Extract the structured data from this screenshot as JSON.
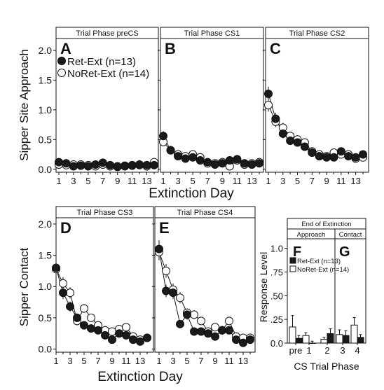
{
  "figure": {
    "top_xlabel": "Extinction Day",
    "top_ylabel": "Sipper Site Approach",
    "bottom_xlabel": "Extinction Day",
    "bottom_ylabel": "Sipper Contact",
    "right_xlabel": "CS Trial Phase",
    "right_ylabel": "Response Level",
    "right_header": "End of Extinction",
    "right_group_approach": "Approach",
    "right_group_contact": "Contact",
    "legend_top": [
      "Ret-Ext (n=13)",
      "NoRet-Ext (n=14)"
    ],
    "legend_bar": [
      "Ret-Ext (n=13)",
      "NoRet-Ext (n=14)"
    ],
    "colors": {
      "ret_ext": "#1a1a1a",
      "noret_ext": "#ffffff",
      "strip": "#ffffff",
      "axis": "#111111"
    }
  },
  "chart_data": [
    {
      "type": "line",
      "letter": "A",
      "title": "Trial Phase preCS",
      "xlabel": "Extinction Day",
      "ylabel": "Sipper Site Approach",
      "x": [
        1,
        2,
        3,
        4,
        5,
        6,
        7,
        8,
        9,
        10,
        11,
        12,
        13,
        14
      ],
      "xticks": [
        "1",
        "3",
        "5",
        "7",
        "9",
        "11",
        "13"
      ],
      "yticks": [
        "0.0",
        "0.5",
        "1.0",
        "1.5",
        "2.0"
      ],
      "ylim": [
        -0.05,
        2.2
      ],
      "series": [
        {
          "name": "Ret-Ext (n=13)",
          "fill": "black",
          "values": [
            0.12,
            0.1,
            0.05,
            0.06,
            0.05,
            0.08,
            0.11,
            0.07,
            0.05,
            0.05,
            0.07,
            0.08,
            0.07,
            0.07
          ],
          "err": [
            0.03,
            0.03,
            0.02,
            0.02,
            0.02,
            0.03,
            0.03,
            0.02,
            0.02,
            0.02,
            0.02,
            0.03,
            0.02,
            0.03
          ]
        },
        {
          "name": "NoRet-Ext (n=14)",
          "fill": "white",
          "values": [
            0.08,
            0.07,
            0.08,
            0.08,
            0.07,
            0.05,
            0.08,
            0.05,
            0.04,
            0.06,
            0.06,
            0.07,
            0.05,
            0.12
          ],
          "err": [
            0.02,
            0.02,
            0.02,
            0.02,
            0.02,
            0.02,
            0.02,
            0.02,
            0.02,
            0.02,
            0.02,
            0.02,
            0.02,
            0.05
          ]
        }
      ]
    },
    {
      "type": "line",
      "letter": "B",
      "title": "Trial Phase CS1",
      "xlabel": "Extinction Day",
      "ylabel": "Sipper Site Approach",
      "x": [
        1,
        2,
        3,
        4,
        5,
        6,
        7,
        8,
        9,
        10,
        11,
        12,
        13,
        14
      ],
      "xticks": [
        "1",
        "3",
        "5",
        "7",
        "9",
        "11",
        "13"
      ],
      "yticks": [
        "0.0",
        "0.5",
        "1.0",
        "1.5",
        "2.0"
      ],
      "ylim": [
        -0.05,
        2.2
      ],
      "series": [
        {
          "name": "Ret-Ext (n=13)",
          "fill": "black",
          "values": [
            0.56,
            0.32,
            0.22,
            0.18,
            0.2,
            0.15,
            0.12,
            0.08,
            0.1,
            0.15,
            0.17,
            0.1,
            0.08,
            0.1
          ],
          "err": [
            0.08,
            0.06,
            0.04,
            0.04,
            0.04,
            0.04,
            0.03,
            0.03,
            0.03,
            0.04,
            0.04,
            0.03,
            0.03,
            0.03
          ]
        },
        {
          "name": "NoRet-Ext (n=14)",
          "fill": "white",
          "values": [
            0.46,
            0.32,
            0.25,
            0.22,
            0.25,
            0.2,
            0.1,
            0.1,
            0.12,
            0.05,
            0.15,
            0.08,
            0.1,
            0.12
          ],
          "err": [
            0.07,
            0.05,
            0.04,
            0.04,
            0.04,
            0.04,
            0.03,
            0.03,
            0.03,
            0.02,
            0.04,
            0.03,
            0.03,
            0.03
          ]
        }
      ]
    },
    {
      "type": "line",
      "letter": "C",
      "title": "Trial Phase CS2",
      "xlabel": "Extinction Day",
      "ylabel": "Sipper Site Approach",
      "x": [
        1,
        2,
        3,
        4,
        5,
        6,
        7,
        8,
        9,
        10,
        11,
        12,
        13,
        14
      ],
      "xticks": [
        "1",
        "3",
        "5",
        "7",
        "9",
        "11",
        "13"
      ],
      "yticks": [
        "0.0",
        "0.5",
        "1.0",
        "1.5",
        "2.0"
      ],
      "ylim": [
        -0.05,
        2.2
      ],
      "series": [
        {
          "name": "Ret-Ext (n=13)",
          "fill": "black",
          "values": [
            1.27,
            0.85,
            0.6,
            0.48,
            0.45,
            0.38,
            0.28,
            0.22,
            0.2,
            0.2,
            0.3,
            0.22,
            0.2,
            0.25
          ],
          "err": [
            0.12,
            0.1,
            0.08,
            0.07,
            0.06,
            0.06,
            0.05,
            0.04,
            0.04,
            0.04,
            0.05,
            0.04,
            0.04,
            0.05
          ]
        },
        {
          "name": "NoRet-Ext (n=14)",
          "fill": "white",
          "values": [
            1.08,
            0.8,
            0.7,
            0.56,
            0.5,
            0.45,
            0.3,
            0.25,
            0.22,
            0.28,
            0.25,
            0.25,
            0.18,
            0.2
          ],
          "err": [
            0.11,
            0.09,
            0.08,
            0.07,
            0.06,
            0.06,
            0.05,
            0.04,
            0.04,
            0.05,
            0.04,
            0.04,
            0.04,
            0.04
          ]
        }
      ]
    },
    {
      "type": "line",
      "letter": "D",
      "title": "Trial Phase CS3",
      "xlabel": "Extinction Day",
      "ylabel": "Sipper Contact",
      "x": [
        1,
        2,
        3,
        4,
        5,
        6,
        7,
        8,
        9,
        10,
        11,
        12,
        13,
        14
      ],
      "xticks": [
        "1",
        "3",
        "5",
        "7",
        "9",
        "11",
        "13"
      ],
      "yticks": [
        "0.0",
        "0.5",
        "1.0",
        "1.5",
        "2.0"
      ],
      "ylim": [
        -0.05,
        2.1
      ],
      "series": [
        {
          "name": "Ret-Ext (n=13)",
          "fill": "black",
          "values": [
            1.3,
            0.9,
            0.68,
            0.5,
            0.38,
            0.33,
            0.3,
            0.22,
            0.15,
            0.25,
            0.22,
            0.15,
            0.12,
            0.18
          ],
          "err": [
            0.12,
            0.1,
            0.08,
            0.07,
            0.06,
            0.05,
            0.05,
            0.04,
            0.04,
            0.05,
            0.04,
            0.04,
            0.04,
            0.04
          ]
        },
        {
          "name": "NoRet-Ext (n=14)",
          "fill": "white",
          "values": [
            1.28,
            1.05,
            0.9,
            0.45,
            0.65,
            0.5,
            0.38,
            0.3,
            0.28,
            0.32,
            0.35,
            0.2,
            0.15,
            0.18
          ],
          "err": [
            0.12,
            0.1,
            0.09,
            0.07,
            0.07,
            0.06,
            0.05,
            0.05,
            0.05,
            0.05,
            0.05,
            0.04,
            0.04,
            0.04
          ]
        }
      ]
    },
    {
      "type": "line",
      "letter": "E",
      "title": "Trial Phase CS4",
      "xlabel": "Extinction Day",
      "ylabel": "Sipper Contact",
      "x": [
        1,
        2,
        3,
        4,
        5,
        6,
        7,
        8,
        9,
        10,
        11,
        12,
        13,
        14
      ],
      "xticks": [
        "1",
        "3",
        "5",
        "7",
        "9",
        "11",
        "13"
      ],
      "yticks": [
        "0.0",
        "0.5",
        "1.0",
        "1.5",
        "2.0"
      ],
      "ylim": [
        -0.05,
        2.1
      ],
      "series": [
        {
          "name": "Ret-Ext (n=13)",
          "fill": "black",
          "values": [
            1.6,
            0.93,
            0.9,
            0.4,
            0.55,
            0.28,
            0.28,
            0.25,
            0.2,
            0.3,
            0.3,
            0.15,
            0.1,
            0.15
          ],
          "err": [
            0.14,
            0.1,
            0.1,
            0.06,
            0.08,
            0.05,
            0.05,
            0.05,
            0.04,
            0.05,
            0.05,
            0.04,
            0.03,
            0.04
          ]
        },
        {
          "name": "NoRet-Ext (n=14)",
          "fill": "white",
          "values": [
            1.55,
            1.25,
            0.95,
            0.82,
            0.58,
            0.55,
            0.45,
            0.28,
            0.35,
            0.3,
            0.45,
            0.2,
            0.18,
            0.18
          ],
          "err": [
            0.13,
            0.11,
            0.1,
            0.09,
            0.07,
            0.07,
            0.06,
            0.05,
            0.05,
            0.05,
            0.06,
            0.04,
            0.04,
            0.04
          ]
        }
      ]
    },
    {
      "type": "bar",
      "letters": [
        "F",
        "G"
      ],
      "title": "End of Extinction",
      "groups": [
        "Approach",
        "Contact"
      ],
      "xlabel": "CS Trial Phase",
      "ylabel": "Response Level",
      "categories": [
        "pre",
        "1",
        "2",
        "3",
        "4"
      ],
      "yticks": [
        "0.0",
        ".25",
        ".50",
        ".75",
        "1.0"
      ],
      "ylim": [
        0,
        1.1
      ],
      "series": [
        {
          "name": "Ret-Ext (n=13)",
          "fill": "black",
          "values": [
            0.05,
            0.0,
            0.1,
            0.08,
            0.06
          ],
          "err": [
            0.03,
            0.02,
            0.05,
            0.05,
            0.03
          ]
        },
        {
          "name": "NoRet-Ext (n=14)",
          "fill": "white",
          "values": [
            0.17,
            0.08,
            0.04,
            0.09,
            0.19
          ],
          "err": [
            0.12,
            0.03,
            0.02,
            0.05,
            0.08
          ]
        }
      ]
    }
  ]
}
